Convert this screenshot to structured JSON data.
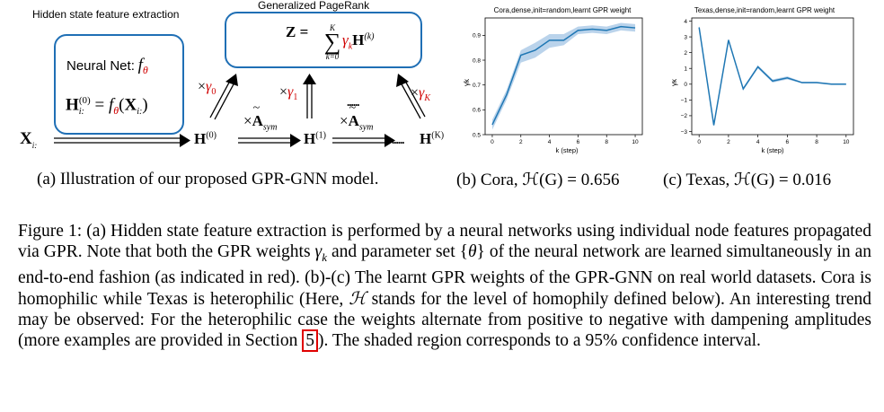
{
  "diagram": {
    "hidden_label": "Hidden state feature extraction",
    "gpr_label": "Generalized PageRank",
    "neural_net_text": "Neural Net:",
    "f_theta": "f",
    "theta": "θ",
    "h0_lhs": "H",
    "h0_sub": "i:",
    "h0_sup": "(0)",
    "eq": "=",
    "x_sym": "X",
    "z_eq_lhs": "Z =",
    "sum_top": "K",
    "sum_bottom": "k=0",
    "gamma_k": "γ",
    "sub_k": "k",
    "h_k": "H",
    "sup_k": "(k)",
    "x_input": "X",
    "x_input_sub": "i:",
    "node_h0": "H",
    "node_h0_sup": "(0)",
    "node_h1": "H",
    "node_h1_sup": "(1)",
    "node_hk": "H",
    "node_hk_sup": "(K)",
    "dots_top": "......",
    "dots_mid": "......",
    "times": "×",
    "a_sym": "A",
    "a_sub": "sym",
    "gamma0": "γ",
    "gamma0_sub": "0",
    "gamma1": "γ",
    "gamma1_sub": "1",
    "gammaK": "γ",
    "gammaK_sub": "K"
  },
  "subcaptions": {
    "a": "(a) Illustration of our proposed GPR-GNN model.",
    "b": "(b) Cora, ℋ(G) = 0.656",
    "c": "(c) Texas, ℋ(G) = 0.016"
  },
  "caption": {
    "text_1": "Figure 1: (a) Hidden state feature extraction is performed by a neural networks using individual node features propagated via GPR. Note that both the GPR weights ",
    "gamma_math": "γ",
    "gamma_sub": "k",
    "text_2": " and parameter set {",
    "theta_math": "θ",
    "text_3": "} of the neural network are learned simultaneously in an end-to-end fashion (as indicated in red). (b)-(c) The learnt GPR weights of the GPR-GNN on real world datasets. Cora is homophilic while Texas is heterophilic (Here, ",
    "h_math": "ℋ",
    "text_4": " stands for the level of homophily defined below). An interesting trend may be observed: For the heterophilic case the weights alternate from positive to negative with dampening amplitudes (more examples are provided in Section ",
    "section_ref": "5",
    "text_5": "). The shaded region corresponds to a 95% confidence interval."
  },
  "chart_data": [
    {
      "type": "line",
      "title": "Cora,dense,init=random,learnt GPR weight",
      "xlabel": "k (step)",
      "ylabel": "γk",
      "x": [
        0,
        1,
        2,
        3,
        4,
        5,
        6,
        7,
        8,
        9,
        10
      ],
      "values": [
        0.54,
        0.66,
        0.82,
        0.84,
        0.88,
        0.88,
        0.92,
        0.925,
        0.92,
        0.935,
        0.93
      ],
      "ci_low": [
        0.52,
        0.64,
        0.79,
        0.81,
        0.85,
        0.86,
        0.905,
        0.91,
        0.905,
        0.92,
        0.915
      ],
      "ci_high": [
        0.56,
        0.68,
        0.84,
        0.87,
        0.905,
        0.905,
        0.935,
        0.94,
        0.935,
        0.95,
        0.945
      ],
      "xlim": [
        -0.5,
        10.5
      ],
      "ylim": [
        0.5,
        0.97
      ],
      "xticks": [
        0,
        2,
        4,
        6,
        8,
        10
      ],
      "yticks": [
        0.5,
        0.6,
        0.7,
        0.8,
        0.9
      ],
      "ytick_labels": [
        "0.5",
        "0.6",
        "0.7",
        "0.8",
        "0.9"
      ],
      "line_color": "#1f77b4",
      "band_color": "#a9c8e6"
    },
    {
      "type": "line",
      "title": "Texas,dense,init=random,learnt GPR weight",
      "xlabel": "k (step)",
      "ylabel": "γk",
      "x": [
        0,
        1,
        2,
        3,
        4,
        5,
        6,
        7,
        8,
        9,
        10
      ],
      "values": [
        3.6,
        -2.6,
        2.8,
        -0.3,
        1.1,
        0.2,
        0.4,
        0.1,
        0.1,
        0.0,
        0.0
      ],
      "ci_low": [
        3.5,
        -2.7,
        2.7,
        -0.4,
        1.0,
        0.1,
        0.3,
        0.05,
        0.05,
        -0.05,
        -0.05
      ],
      "ci_high": [
        3.7,
        -2.5,
        2.9,
        -0.2,
        1.2,
        0.3,
        0.5,
        0.15,
        0.15,
        0.05,
        0.05
      ],
      "xlim": [
        -0.5,
        10.5
      ],
      "ylim": [
        -3.2,
        4.2
      ],
      "xticks": [
        0,
        2,
        4,
        6,
        8,
        10
      ],
      "yticks": [
        -3,
        -2,
        -1,
        0,
        1,
        2,
        3,
        4
      ],
      "ytick_labels": [
        "−3",
        "−2",
        "−1",
        "0",
        "1",
        "2",
        "3",
        "4"
      ],
      "line_color": "#1f77b4",
      "band_color": "#a9c8e6"
    }
  ]
}
